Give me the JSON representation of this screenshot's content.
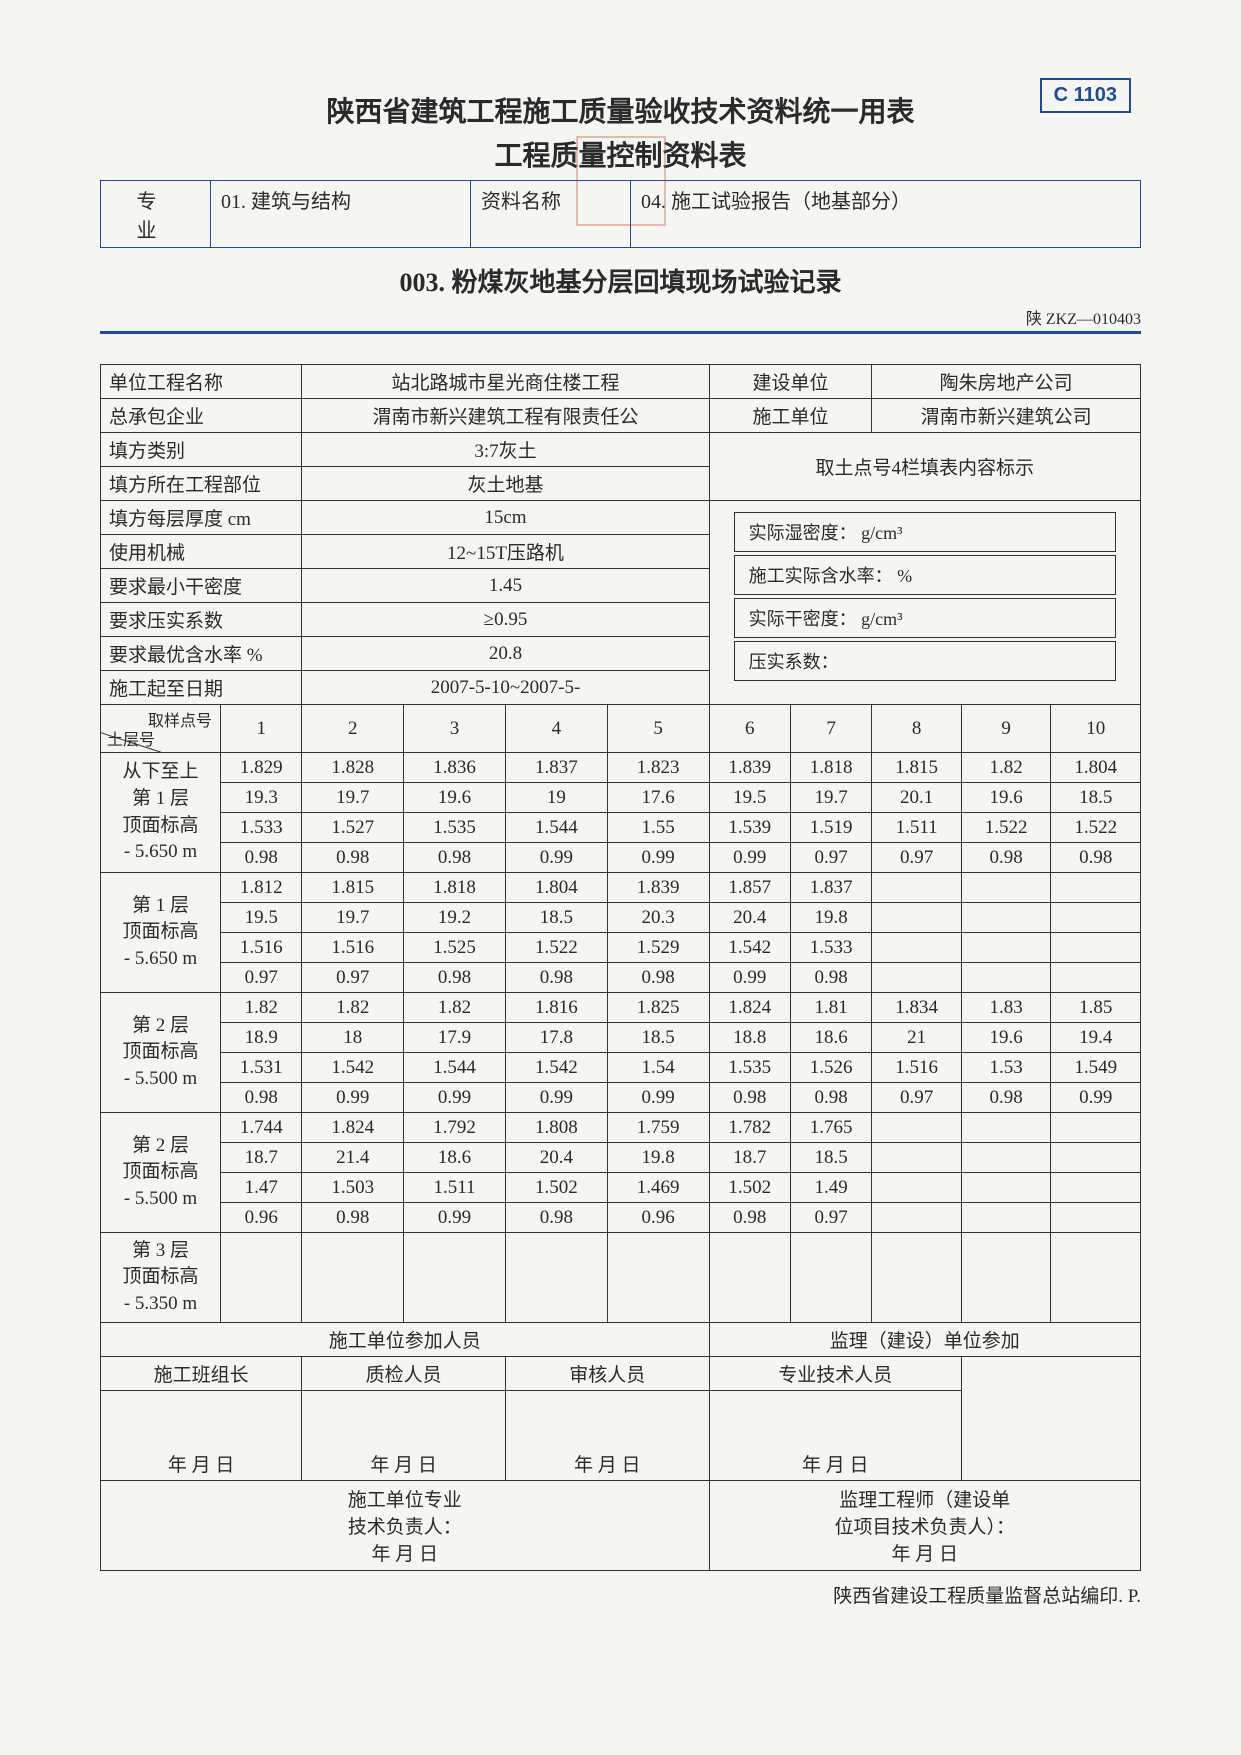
{
  "badge": "C 1103",
  "title1": "陕西省建筑工程施工质量验收技术资料统一用表",
  "title2": "工程质量控制资料表",
  "header": {
    "col1_label": "专 业",
    "col1_value": "01. 建筑与结构",
    "col2_label": "资料名称",
    "col2_value": "04. 施工试验报告（地基部分）"
  },
  "doc_title": "003. 粉煤灰地基分层回填现场试验记录",
  "doc_code": "陕 ZKZ—010403",
  "info": {
    "row1": {
      "l1": "单位工程名称",
      "v1": "站北路城市星光商住楼工程",
      "l2": "建设单位",
      "v2": "陶朱房地产公司"
    },
    "row2": {
      "l1": "总承包企业",
      "v1": "渭南市新兴建筑工程有限责任公",
      "l2": "施工单位",
      "v2": "渭南市新兴建筑公司"
    },
    "r3": {
      "l": "填方类别",
      "v": "3:7灰土"
    },
    "r4": {
      "l": "填方所在工程部位",
      "v": "灰土地基"
    },
    "r5": {
      "l": "填方每层厚度   cm",
      "v": "15cm"
    },
    "r6": {
      "l": "使用机械",
      "v": "12~15T压路机"
    },
    "r7": {
      "l": "要求最小干密度",
      "v": "1.45"
    },
    "r8": {
      "l": "要求压实系数",
      "v": "≥0.95"
    },
    "r9": {
      "l": "要求最优含水率   %",
      "v": "20.8"
    },
    "r10": {
      "l": "施工起至日期",
      "v": "2007-5-10~2007-5-"
    },
    "side_title": "取土点号4栏填表内容标示",
    "side1": "实际湿密度：   g/cm³",
    "side2": "施工实际含水率：   %",
    "side3": "实际干密度：   g/cm³",
    "side4": "压实系数："
  },
  "grid": {
    "diag_top": "取样点号",
    "diag_bot": "土层号",
    "cols": [
      "1",
      "2",
      "3",
      "4",
      "5",
      "6",
      "7",
      "8",
      "9",
      "10"
    ],
    "layers": [
      {
        "label": "从下至上\n第 1 层\n顶面标高\n- 5.650 m",
        "rows": [
          [
            "1.829",
            "1.828",
            "1.836",
            "1.837",
            "1.823",
            "1.839",
            "1.818",
            "1.815",
            "1.82",
            "1.804"
          ],
          [
            "19.3",
            "19.7",
            "19.6",
            "19",
            "17.6",
            "19.5",
            "19.7",
            "20.1",
            "19.6",
            "18.5"
          ],
          [
            "1.533",
            "1.527",
            "1.535",
            "1.544",
            "1.55",
            "1.539",
            "1.519",
            "1.511",
            "1.522",
            "1.522"
          ],
          [
            "0.98",
            "0.98",
            "0.98",
            "0.99",
            "0.99",
            "0.99",
            "0.97",
            "0.97",
            "0.98",
            "0.98"
          ]
        ]
      },
      {
        "label": "第 1 层\n顶面标高\n- 5.650 m",
        "rows": [
          [
            "1.812",
            "1.815",
            "1.818",
            "1.804",
            "1.839",
            "1.857",
            "1.837",
            "",
            "",
            ""
          ],
          [
            "19.5",
            "19.7",
            "19.2",
            "18.5",
            "20.3",
            "20.4",
            "19.8",
            "",
            "",
            ""
          ],
          [
            "1.516",
            "1.516",
            "1.525",
            "1.522",
            "1.529",
            "1.542",
            "1.533",
            "",
            "",
            ""
          ],
          [
            "0.97",
            "0.97",
            "0.98",
            "0.98",
            "0.98",
            "0.99",
            "0.98",
            "",
            "",
            ""
          ]
        ]
      },
      {
        "label": "第 2 层\n顶面标高\n- 5.500 m",
        "rows": [
          [
            "1.82",
            "1.82",
            "1.82",
            "1.816",
            "1.825",
            "1.824",
            "1.81",
            "1.834",
            "1.83",
            "1.85"
          ],
          [
            "18.9",
            "18",
            "17.9",
            "17.8",
            "18.5",
            "18.8",
            "18.6",
            "21",
            "19.6",
            "19.4"
          ],
          [
            "1.531",
            "1.542",
            "1.544",
            "1.542",
            "1.54",
            "1.535",
            "1.526",
            "1.516",
            "1.53",
            "1.549"
          ],
          [
            "0.98",
            "0.99",
            "0.99",
            "0.99",
            "0.99",
            "0.98",
            "0.98",
            "0.97",
            "0.98",
            "0.99"
          ]
        ]
      },
      {
        "label": "第 2 层\n顶面标高\n- 5.500 m",
        "rows": [
          [
            "1.744",
            "1.824",
            "1.792",
            "1.808",
            "1.759",
            "1.782",
            "1.765",
            "",
            "",
            ""
          ],
          [
            "18.7",
            "21.4",
            "18.6",
            "20.4",
            "19.8",
            "18.7",
            "18.5",
            "",
            "",
            ""
          ],
          [
            "1.47",
            "1.503",
            "1.511",
            "1.502",
            "1.469",
            "1.502",
            "1.49",
            "",
            "",
            ""
          ],
          [
            "0.96",
            "0.98",
            "0.99",
            "0.98",
            "0.96",
            "0.98",
            "0.97",
            "",
            "",
            ""
          ]
        ]
      },
      {
        "label": "第 3 层\n顶面标高\n- 5.350 m",
        "rows": [
          [
            "",
            "",
            "",
            "",
            "",
            "",
            "",
            "",
            "",
            ""
          ]
        ]
      }
    ]
  },
  "sign": {
    "h1": "施工单位参加人员",
    "h2": "监理（建设）单位参加",
    "c1": "施工班组长",
    "c2": "质检人员",
    "c3": "审核人员",
    "c4": "专业技术人员",
    "date": "年 月 日",
    "left_block": "施工单位专业\n技术负责人：\n年  月  日",
    "right_block": "监理工程师（建设单\n位项目技术负责人）：\n年  月  日"
  },
  "footer": "陕西省建设工程质量监督总站编印. P."
}
